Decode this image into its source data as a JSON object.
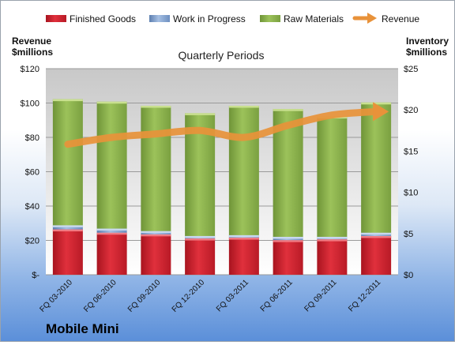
{
  "company": "Mobile Mini",
  "chart_data": {
    "type": "bar",
    "subtype": "stacked-bar-with-line",
    "title": "Quarterly Periods",
    "left_axis_label": [
      "Revenue",
      "$millions"
    ],
    "right_axis_label": [
      "Inventory",
      "$millions"
    ],
    "left_axis": {
      "min": 0,
      "max": 120,
      "step": 20,
      "tick_labels": [
        "$-",
        "$20",
        "$40",
        "$60",
        "$80",
        "$100",
        "$120"
      ]
    },
    "right_axis": {
      "min": 0,
      "max": 25,
      "step": 5,
      "tick_labels": [
        "$0",
        "$5",
        "$10",
        "$15",
        "$20",
        "$25"
      ]
    },
    "categories": [
      "FQ 03-2010",
      "FQ 06-2010",
      "FQ 09-2010",
      "FQ 12-2010",
      "FQ 03-2011",
      "FQ 06-2011",
      "FQ 09-2011",
      "FQ 12-2011"
    ],
    "series": [
      {
        "name": "Finished Goods",
        "type": "bar",
        "axis": "right",
        "color": "#c0202c",
        "values": [
          5.5,
          5.1,
          4.9,
          4.4,
          4.5,
          4.2,
          4.3,
          4.7
        ]
      },
      {
        "name": "Work in Progress",
        "type": "bar",
        "axis": "right",
        "color": "#7f9fcf",
        "values": [
          0.5,
          0.5,
          0.4,
          0.3,
          0.3,
          0.4,
          0.3,
          0.4
        ]
      },
      {
        "name": "Raw Materials",
        "type": "bar",
        "axis": "right",
        "color": "#8cb04a",
        "values": [
          15.3,
          15.4,
          15.2,
          14.9,
          15.7,
          15.5,
          14.6,
          15.8
        ]
      },
      {
        "name": "Revenue",
        "type": "line",
        "axis": "left",
        "color": "#e8923a",
        "values": [
          76,
          80,
          82,
          84,
          80,
          87,
          93,
          95
        ]
      }
    ],
    "legend_position": "top",
    "grid": true
  }
}
